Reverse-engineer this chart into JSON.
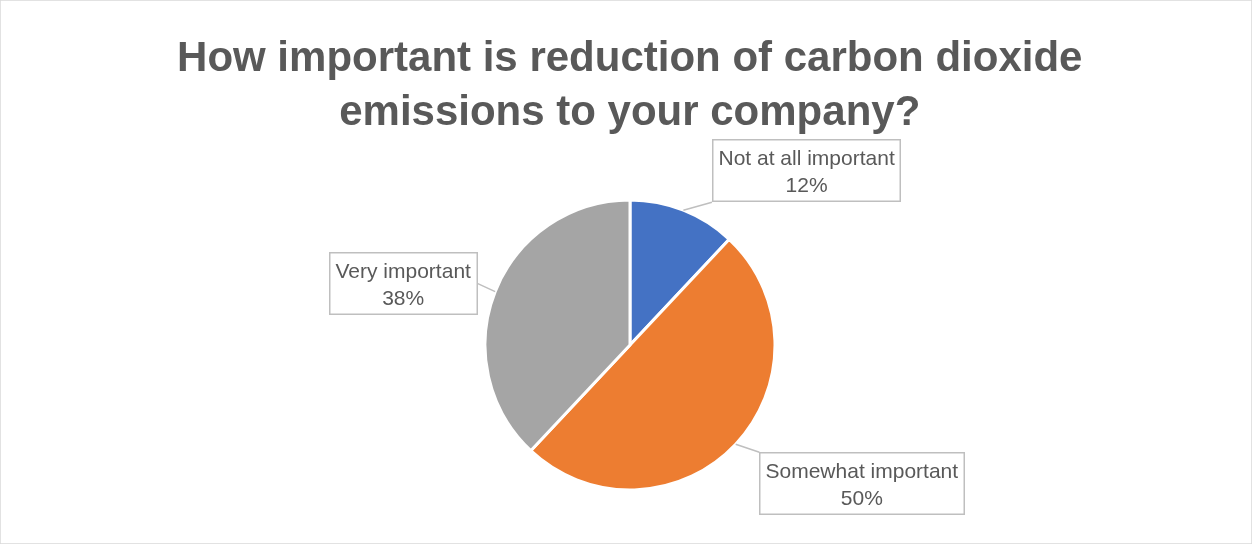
{
  "chart_data": {
    "type": "pie",
    "title": "How important is reduction of carbon dioxide emissions to your company?",
    "categories": [
      "Not at all important",
      "Somewhat important",
      "Very important"
    ],
    "values": [
      12,
      50,
      38
    ],
    "colors": [
      "#4472c4",
      "#ed7d31",
      "#a5a5a5"
    ],
    "value_labels": [
      "12%",
      "50%",
      "38%"
    ],
    "legend": false
  }
}
